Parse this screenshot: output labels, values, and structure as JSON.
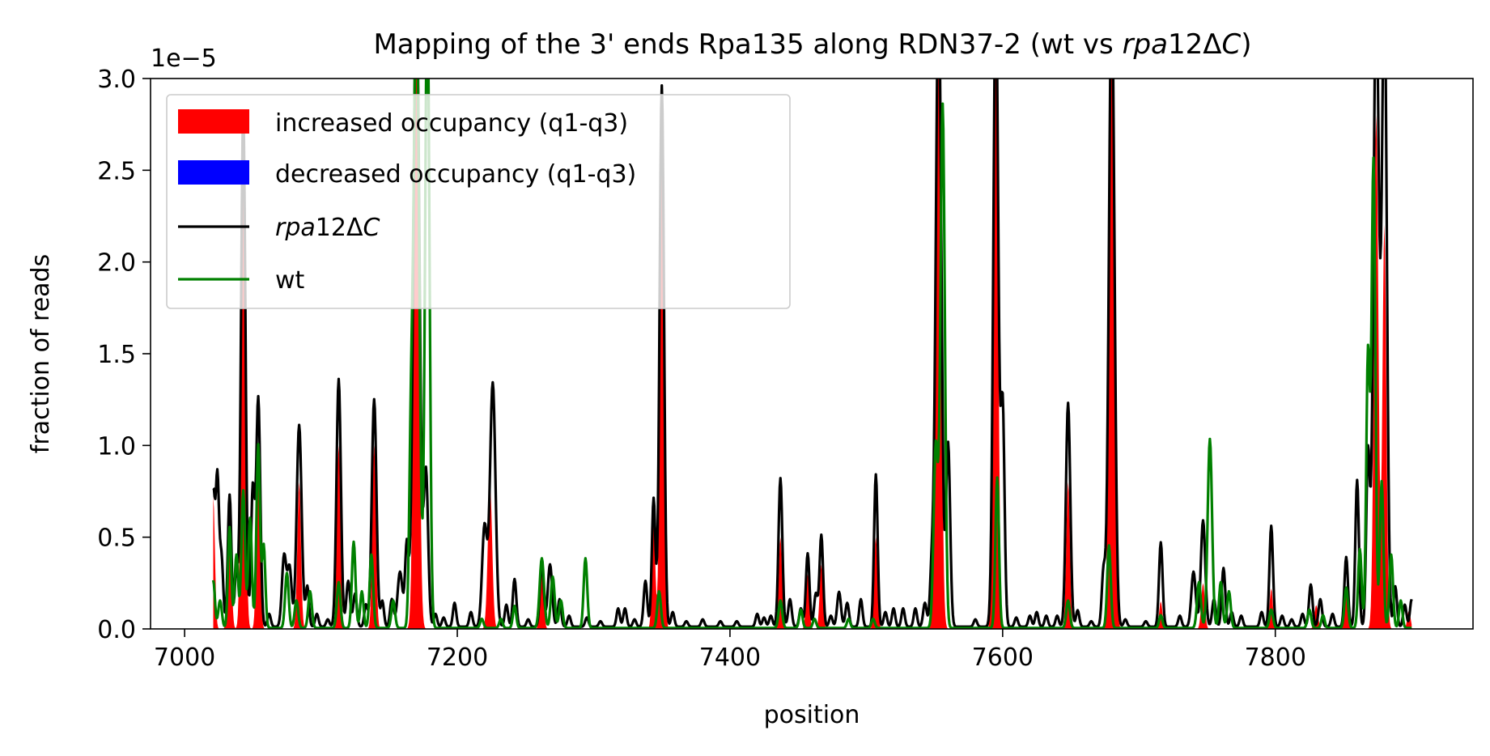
{
  "chart_data": {
    "type": "line",
    "title": "Mapping of the 3' ends Rpa135 along RDN37-2 (wt vs rpa12ΔC)",
    "title_parts": [
      "Mapping of the 3' ends Rpa135 along RDN37-2 (wt vs ",
      "rpa",
      "12Δ",
      "C",
      ")"
    ],
    "xlabel": "position",
    "ylabel": "fraction of reads",
    "y_offset_label": "1e−5",
    "xlim": [
      6975,
      7945
    ],
    "ylim": [
      0,
      3.0
    ],
    "y_scale_exponent": -5,
    "xticks": [
      7000,
      7200,
      7400,
      7600,
      7800
    ],
    "xtick_labels": [
      "7000",
      "7200",
      "7400",
      "7600",
      "7800"
    ],
    "yticks": [
      0.0,
      0.5,
      1.0,
      1.5,
      2.0,
      2.5,
      3.0
    ],
    "ytick_labels": [
      "0.0",
      "0.5",
      "1.0",
      "1.5",
      "2.0",
      "2.5",
      "3.0"
    ],
    "grid": false,
    "legend_position": "top-left",
    "legend": [
      {
        "label": "increased occupancy (q1-q3)",
        "kind": "patch",
        "color": "#ff0000"
      },
      {
        "label": "decreased occupancy (q1-q3)",
        "kind": "patch",
        "color": "#0000ff"
      },
      {
        "label_parts": [
          "rpa",
          "12Δ",
          "C"
        ],
        "label": "rpa12ΔC",
        "kind": "line",
        "color": "#000000"
      },
      {
        "label": "wt",
        "kind": "line",
        "color": "#008000"
      }
    ],
    "series": [
      {
        "name": "rpa12ΔC",
        "color": "#000000",
        "x_start": 7021,
        "x_end": 7900,
        "baseline": 0.012,
        "peaks": [
          [
            7021,
            0.72,
            1.2
          ],
          [
            7024,
            0.8,
            1.2
          ],
          [
            7027,
            0.38,
            1.3
          ],
          [
            7033,
            0.72,
            1.3
          ],
          [
            7038,
            0.32,
            1.2
          ],
          [
            7043,
            2.8,
            1.6
          ],
          [
            7050,
            0.75,
            1.3
          ],
          [
            7054,
            1.25,
            1.5
          ],
          [
            7062,
            0.07,
            1.2
          ],
          [
            7073,
            0.39,
            1.6
          ],
          [
            7077,
            0.32,
            1.5
          ],
          [
            7084,
            1.1,
            1.8
          ],
          [
            7090,
            0.22,
            1.2
          ],
          [
            7097,
            0.07,
            1.2
          ],
          [
            7105,
            0.04,
            1.2
          ],
          [
            7113,
            1.35,
            1.6
          ],
          [
            7120,
            0.25,
            1.4
          ],
          [
            7125,
            0.18,
            1.3
          ],
          [
            7133,
            0.12,
            1.2
          ],
          [
            7139,
            1.24,
            1.7
          ],
          [
            7145,
            0.14,
            1.2
          ],
          [
            7152,
            0.15,
            1.3
          ],
          [
            7158,
            0.3,
            1.8
          ],
          [
            7163,
            0.45,
            1.3
          ],
          [
            7170,
            3.5,
            2.2
          ],
          [
            7177,
            0.85,
            1.6
          ],
          [
            7184,
            0.07,
            1.2
          ],
          [
            7190,
            0.05,
            1.2
          ],
          [
            7198,
            0.13,
            1.2
          ],
          [
            7210,
            0.08,
            1.2
          ],
          [
            7220,
            0.55,
            1.8
          ],
          [
            7226,
            1.33,
            2.0
          ],
          [
            7236,
            0.12,
            1.2
          ],
          [
            7242,
            0.26,
            1.3
          ],
          [
            7252,
            0.04,
            1.2
          ],
          [
            7262,
            0.35,
            1.4
          ],
          [
            7268,
            0.34,
            1.6
          ],
          [
            7275,
            0.15,
            1.2
          ],
          [
            7282,
            0.06,
            1.2
          ],
          [
            7295,
            0.05,
            1.2
          ],
          [
            7305,
            0.03,
            1.2
          ],
          [
            7318,
            0.1,
            1.2
          ],
          [
            7323,
            0.1,
            1.2
          ],
          [
            7330,
            0.04,
            1.2
          ],
          [
            7338,
            0.25,
            1.3
          ],
          [
            7344,
            0.7,
            1.3
          ],
          [
            7350,
            2.95,
            1.6
          ],
          [
            7358,
            0.08,
            1.2
          ],
          [
            7368,
            0.03,
            1.2
          ],
          [
            7380,
            0.04,
            1.2
          ],
          [
            7393,
            0.03,
            1.2
          ],
          [
            7405,
            0.03,
            1.2
          ],
          [
            7420,
            0.07,
            1.2
          ],
          [
            7425,
            0.05,
            1.2
          ],
          [
            7430,
            0.06,
            1.2
          ],
          [
            7437,
            0.81,
            1.4
          ],
          [
            7444,
            0.15,
            1.3
          ],
          [
            7452,
            0.1,
            1.2
          ],
          [
            7457,
            0.4,
            1.3
          ],
          [
            7463,
            0.18,
            1.3
          ],
          [
            7467,
            0.5,
            1.3
          ],
          [
            7474,
            0.06,
            1.2
          ],
          [
            7480,
            0.19,
            1.4
          ],
          [
            7486,
            0.13,
            1.3
          ],
          [
            7496,
            0.15,
            1.2
          ],
          [
            7507,
            0.83,
            1.3
          ],
          [
            7514,
            0.08,
            1.2
          ],
          [
            7520,
            0.1,
            1.2
          ],
          [
            7527,
            0.1,
            1.2
          ],
          [
            7536,
            0.1,
            1.2
          ],
          [
            7543,
            0.13,
            1.3
          ],
          [
            7548,
            0.3,
            1.3
          ],
          [
            7553,
            3.5,
            2.0
          ],
          [
            7560,
            1.0,
            1.5
          ],
          [
            7580,
            0.04,
            1.2
          ],
          [
            7595,
            3.5,
            1.8
          ],
          [
            7600,
            1.2,
            1.4
          ],
          [
            7610,
            0.05,
            1.2
          ],
          [
            7620,
            0.06,
            1.2
          ],
          [
            7625,
            0.08,
            1.2
          ],
          [
            7632,
            0.06,
            1.2
          ],
          [
            7640,
            0.06,
            1.2
          ],
          [
            7648,
            1.22,
            1.6
          ],
          [
            7655,
            0.09,
            1.2
          ],
          [
            7665,
            0.03,
            1.2
          ],
          [
            7674,
            0.3,
            1.3
          ],
          [
            7680,
            3.5,
            2.0
          ],
          [
            7690,
            0.04,
            1.2
          ],
          [
            7705,
            0.03,
            1.2
          ],
          [
            7716,
            0.46,
            1.3
          ],
          [
            7730,
            0.06,
            1.2
          ],
          [
            7740,
            0.3,
            1.6
          ],
          [
            7747,
            0.58,
            1.6
          ],
          [
            7755,
            0.15,
            1.3
          ],
          [
            7762,
            0.32,
            1.3
          ],
          [
            7768,
            0.08,
            1.2
          ],
          [
            7775,
            0.06,
            1.2
          ],
          [
            7790,
            0.08,
            1.2
          ],
          [
            7797,
            0.55,
            1.3
          ],
          [
            7805,
            0.06,
            1.2
          ],
          [
            7812,
            0.04,
            1.2
          ],
          [
            7820,
            0.07,
            1.2
          ],
          [
            7826,
            0.23,
            1.3
          ],
          [
            7833,
            0.15,
            1.3
          ],
          [
            7842,
            0.07,
            1.2
          ],
          [
            7852,
            0.38,
            1.3
          ],
          [
            7860,
            0.8,
            1.3
          ],
          [
            7868,
            0.95,
            1.3
          ],
          [
            7874,
            3.5,
            2.0
          ],
          [
            7880,
            3.5,
            1.8
          ],
          [
            7888,
            0.22,
            1.2
          ],
          [
            7895,
            0.12,
            1.2
          ],
          [
            7900,
            0.15,
            1.2
          ]
        ]
      },
      {
        "name": "wt",
        "color": "#008000",
        "x_start": 7021,
        "x_end": 7900,
        "baseline": 0.005,
        "peaks": [
          [
            7021,
            0.26,
            1.2
          ],
          [
            7026,
            0.15,
            1.3
          ],
          [
            7033,
            0.55,
            1.2
          ],
          [
            7038,
            0.4,
            1.3
          ],
          [
            7043,
            0.75,
            1.3
          ],
          [
            7048,
            0.6,
            1.3
          ],
          [
            7054,
            1.0,
            1.3
          ],
          [
            7058,
            0.45,
            1.2
          ],
          [
            7075,
            0.3,
            1.3
          ],
          [
            7082,
            0.15,
            1.3
          ],
          [
            7092,
            0.2,
            1.3
          ],
          [
            7113,
            0.25,
            1.3
          ],
          [
            7124,
            0.47,
            1.3
          ],
          [
            7130,
            0.2,
            1.2
          ],
          [
            7137,
            0.4,
            1.3
          ],
          [
            7153,
            0.15,
            1.3
          ],
          [
            7166,
            0.9,
            1.3
          ],
          [
            7170,
            3.5,
            2.0
          ],
          [
            7178,
            3.5,
            1.6
          ],
          [
            7218,
            0.05,
            1.2
          ],
          [
            7232,
            0.05,
            1.2
          ],
          [
            7242,
            0.12,
            1.2
          ],
          [
            7262,
            0.38,
            1.6
          ],
          [
            7270,
            0.28,
            1.4
          ],
          [
            7276,
            0.15,
            1.3
          ],
          [
            7294,
            0.38,
            1.3
          ],
          [
            7348,
            0.2,
            1.3
          ],
          [
            7437,
            0.15,
            1.3
          ],
          [
            7452,
            0.1,
            1.2
          ],
          [
            7462,
            0.05,
            1.2
          ],
          [
            7487,
            0.05,
            1.2
          ],
          [
            7505,
            0.05,
            1.2
          ],
          [
            7551,
            1.0,
            1.6
          ],
          [
            7556,
            2.85,
            1.6
          ],
          [
            7596,
            0.82,
            1.3
          ],
          [
            7648,
            0.15,
            1.3
          ],
          [
            7678,
            0.45,
            1.3
          ],
          [
            7716,
            0.07,
            1.2
          ],
          [
            7744,
            0.25,
            1.4
          ],
          [
            7752,
            1.03,
            1.6
          ],
          [
            7760,
            0.25,
            1.3
          ],
          [
            7766,
            0.2,
            1.3
          ],
          [
            7797,
            0.1,
            1.3
          ],
          [
            7825,
            0.1,
            1.3
          ],
          [
            7835,
            0.07,
            1.2
          ],
          [
            7852,
            0.22,
            1.3
          ],
          [
            7862,
            0.43,
            1.3
          ],
          [
            7868,
            1.5,
            1.3
          ],
          [
            7872,
            2.55,
            1.4
          ],
          [
            7878,
            0.8,
            1.3
          ],
          [
            7885,
            0.4,
            1.3
          ],
          [
            7892,
            0.15,
            1.2
          ]
        ]
      }
    ],
    "increased_regions": [
      [
        7021,
        0.72,
        1.2
      ],
      [
        7033,
        0.65,
        1.3
      ],
      [
        7043,
        2.7,
        1.5
      ],
      [
        7054,
        1.0,
        1.3
      ],
      [
        7084,
        0.8,
        1.3
      ],
      [
        7113,
        1.0,
        1.3
      ],
      [
        7139,
        1.0,
        1.3
      ],
      [
        7170,
        3.5,
        1.8
      ],
      [
        7224,
        0.78,
        1.6
      ],
      [
        7262,
        0.3,
        1.3
      ],
      [
        7344,
        0.6,
        1.2
      ],
      [
        7350,
        2.6,
        1.4
      ],
      [
        7437,
        0.5,
        1.2
      ],
      [
        7457,
        0.3,
        1.2
      ],
      [
        7467,
        0.35,
        1.2
      ],
      [
        7507,
        0.5,
        1.2
      ],
      [
        7553,
        3.5,
        1.8
      ],
      [
        7595,
        3.5,
        1.6
      ],
      [
        7648,
        0.8,
        1.3
      ],
      [
        7680,
        3.5,
        1.8
      ],
      [
        7716,
        0.15,
        1.2
      ],
      [
        7747,
        0.25,
        1.3
      ],
      [
        7797,
        0.22,
        1.2
      ],
      [
        7830,
        0.13,
        1.3
      ],
      [
        7852,
        0.2,
        1.2
      ],
      [
        7874,
        2.8,
        1.6
      ],
      [
        7880,
        2.2,
        1.4
      ],
      [
        7898,
        0.1,
        1.2
      ]
    ]
  }
}
